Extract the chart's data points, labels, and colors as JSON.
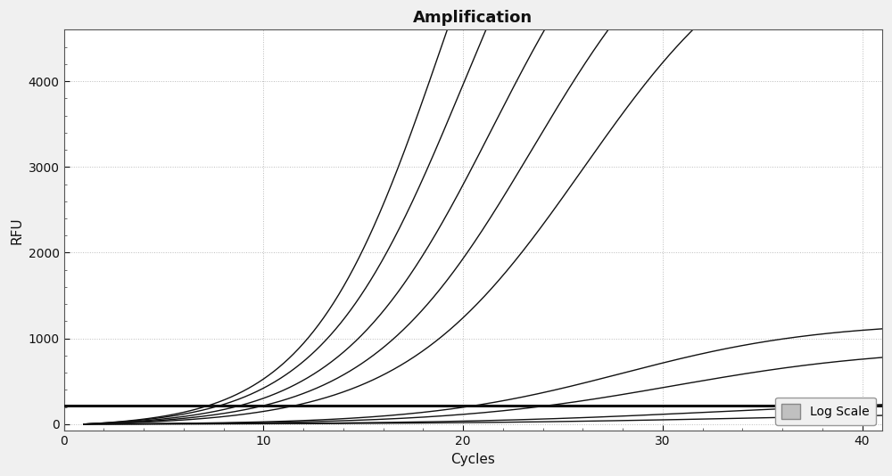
{
  "title": "Amplification",
  "xlabel": "Cycles",
  "ylabel": "RFU",
  "xlim": [
    0,
    41
  ],
  "ylim": [
    -80,
    4600
  ],
  "xticks": [
    0,
    10,
    20,
    30,
    40
  ],
  "yticks": [
    0,
    1000,
    2000,
    3000,
    4000
  ],
  "background_color": "#f0f0f0",
  "plot_bg_color": "#ffffff",
  "grid_color": "#aaaaaa",
  "threshold_y": 220,
  "sigmoid_curves": [
    {
      "ct": 19.0,
      "ymax": 9000,
      "slope": 0.3,
      "color": "#111111"
    },
    {
      "ct": 20.0,
      "ymax": 8000,
      "slope": 0.28,
      "color": "#111111"
    },
    {
      "ct": 21.5,
      "ymax": 7000,
      "slope": 0.26,
      "color": "#111111"
    },
    {
      "ct": 23.5,
      "ymax": 6500,
      "slope": 0.24,
      "color": "#111111"
    },
    {
      "ct": 26.0,
      "ymax": 6000,
      "slope": 0.22,
      "color": "#111111"
    },
    {
      "ct": 28.0,
      "ymax": 1200,
      "slope": 0.2,
      "color": "#111111"
    },
    {
      "ct": 30.5,
      "ymax": 900,
      "slope": 0.18,
      "color": "#111111"
    },
    {
      "ct": 33.0,
      "ymax": 300,
      "slope": 0.15,
      "color": "#111111"
    },
    {
      "ct": 35.0,
      "ymax": 150,
      "slope": 0.13,
      "color": "#111111"
    }
  ],
  "title_fontsize": 13,
  "axis_label_fontsize": 11,
  "tick_fontsize": 10,
  "legend_label": "Log Scale",
  "legend_box_color": "#c0c0c0"
}
